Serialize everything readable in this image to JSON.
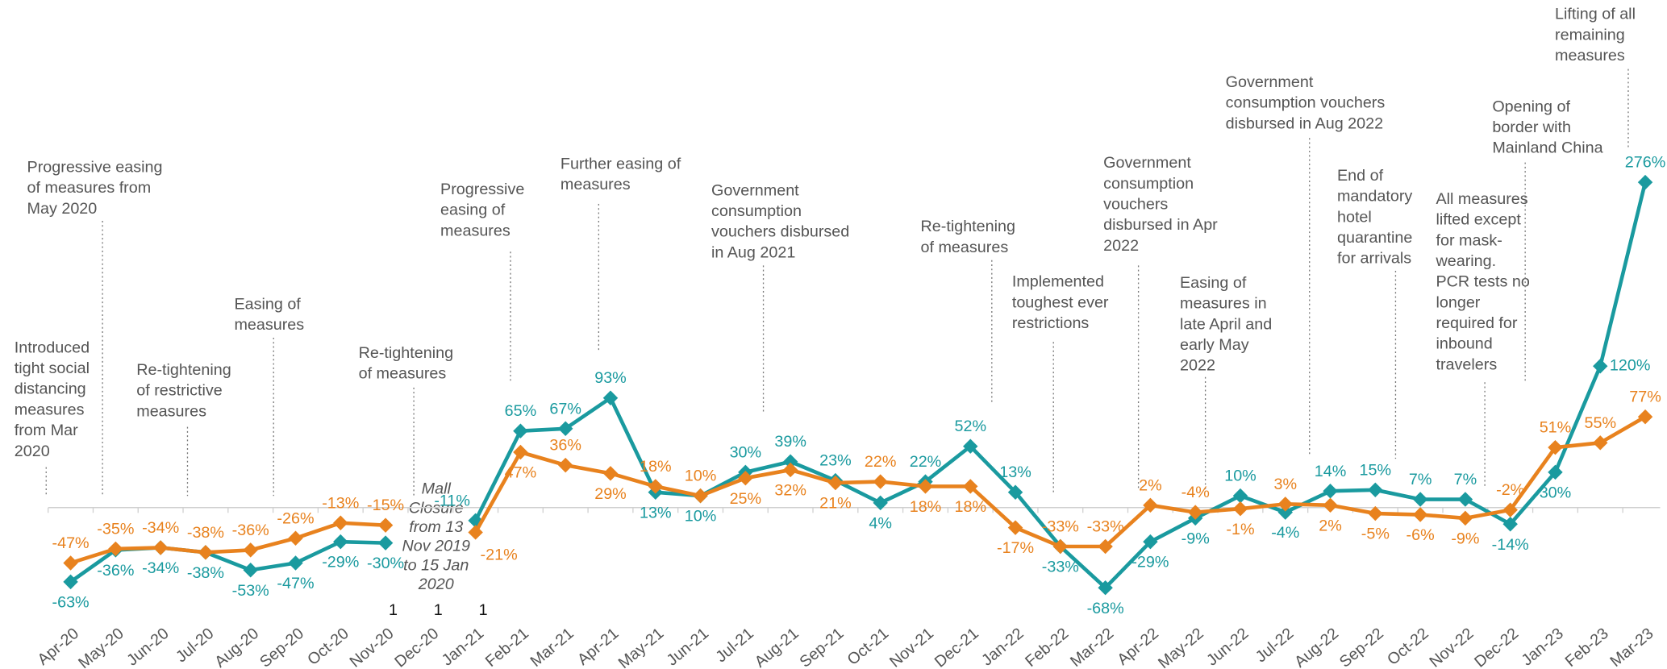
{
  "chart_data": {
    "type": "line",
    "categories": [
      "Apr-20",
      "May-20",
      "Jun-20",
      "Jul-20",
      "Aug-20",
      "Sep-20",
      "Oct-20",
      "Nov-20",
      "Dec-20",
      "Jan-21",
      "Feb-21",
      "Mar-21",
      "Apr-21",
      "May-21",
      "Jun-21",
      "Jul-21",
      "Aug-21",
      "Sep-21",
      "Oct-21",
      "Nov-21",
      "Dec-21",
      "Jan-22",
      "Feb-22",
      "Mar-22",
      "Apr-22",
      "May-22",
      "Jun-22",
      "Jul-22",
      "Aug-22",
      "Sep-22",
      "Oct-22",
      "Nov-22",
      "Dec-22",
      "Jan-23",
      "Feb-23",
      "Mar-23"
    ],
    "category_notes": [
      null,
      null,
      null,
      null,
      null,
      null,
      null,
      "1",
      "1",
      "1",
      null,
      null,
      null,
      null,
      null,
      null,
      null,
      null,
      null,
      null,
      null,
      null,
      null,
      null,
      null,
      null,
      null,
      null,
      null,
      null,
      null,
      null,
      null,
      null,
      null,
      null
    ],
    "series": [
      {
        "color": "#1a9a9f",
        "values": [
          -63,
          -36,
          -34,
          -38,
          -53,
          -47,
          -29,
          -30,
          null,
          -11,
          65,
          67,
          93,
          13,
          10,
          30,
          39,
          23,
          4,
          22,
          52,
          13,
          -33,
          -68,
          -29,
          -9,
          10,
          -4,
          14,
          15,
          7,
          7,
          -14,
          30,
          120,
          276
        ],
        "value_labels": [
          "-63%",
          "-36%",
          "-34%",
          "-38%",
          "-53%",
          "-47%",
          "-29%",
          "-30%",
          null,
          "-11%",
          "65%",
          "67%",
          "93%",
          "13%",
          "10%",
          "30%",
          "39%",
          "23%",
          "4%",
          "22%",
          "52%",
          "13%",
          "-33%",
          "-68%",
          "-29%",
          "-9%",
          "10%",
          "-4%",
          "14%",
          "15%",
          "7%",
          "7%",
          "-14%",
          "30%",
          "120%",
          "276%"
        ]
      },
      {
        "color": "#e8821e",
        "values": [
          -47,
          -35,
          -34,
          -38,
          -36,
          -26,
          -13,
          -15,
          null,
          -21,
          47,
          36,
          29,
          18,
          10,
          25,
          32,
          21,
          22,
          18,
          18,
          -17,
          -33,
          -33,
          2,
          -4,
          -1,
          3,
          2,
          -5,
          -6,
          -9,
          -2,
          51,
          55,
          77
        ],
        "value_labels": [
          "-47%",
          "-35%",
          "-34%",
          "-38%",
          "-36%",
          "-26%",
          "-13%",
          "-15%",
          null,
          "-21%",
          "47%",
          "36%",
          "29%",
          "18%",
          "10%",
          "25%",
          "32%",
          "21%",
          "22%",
          "18%",
          "18%",
          "-17%",
          "-33%",
          "-33%",
          "2%",
          "-4%",
          "-1%",
          "3%",
          "2%",
          "-5%",
          "-6%",
          "-9%",
          "-2%",
          "51%",
          "55%",
          "77%"
        ]
      }
    ],
    "ylim": [
      -110,
      300
    ],
    "annotations": [
      [
        "Introduced",
        "tight social",
        "distancing",
        "measures",
        "from Mar",
        "2020"
      ],
      [
        "Progressive easing",
        "of measures from",
        "May 2020"
      ],
      [
        "Re-tightening",
        "of restrictive",
        "measures"
      ],
      [
        "Easing of",
        "measures"
      ],
      [
        "Re-tightening",
        "of measures"
      ],
      [
        "Mall",
        "Closure",
        "from 13",
        "Nov 2019",
        "to 15 Jan",
        "2020"
      ],
      [
        "Progressive",
        "easing of",
        "measures"
      ],
      [
        "Further easing of",
        "measures"
      ],
      [
        "Government",
        "consumption",
        "vouchers disbursed",
        "in Aug 2021"
      ],
      [
        "Re-tightening",
        "of measures"
      ],
      [
        "Implemented",
        "toughest ever",
        "restrictions"
      ],
      [
        "Government",
        "consumption",
        "vouchers",
        "disbursed in Apr",
        "2022"
      ],
      [
        "Easing of",
        "measures in",
        "late April and",
        "early May",
        "2022"
      ],
      [
        "Government",
        "consumption vouchers",
        "disbursed in Aug 2022"
      ],
      [
        "End of",
        "mandatory",
        "hotel",
        "quarantine",
        "for arrivals"
      ],
      [
        "All measures",
        "lifted except",
        "for mask-",
        "wearing.",
        "PCR tests no",
        "longer",
        "required for",
        "inbound",
        "travelers"
      ],
      [
        "Opening of",
        "border with",
        "Mainland China"
      ],
      [
        "Lifting of all",
        "remaining",
        "measures"
      ]
    ]
  }
}
